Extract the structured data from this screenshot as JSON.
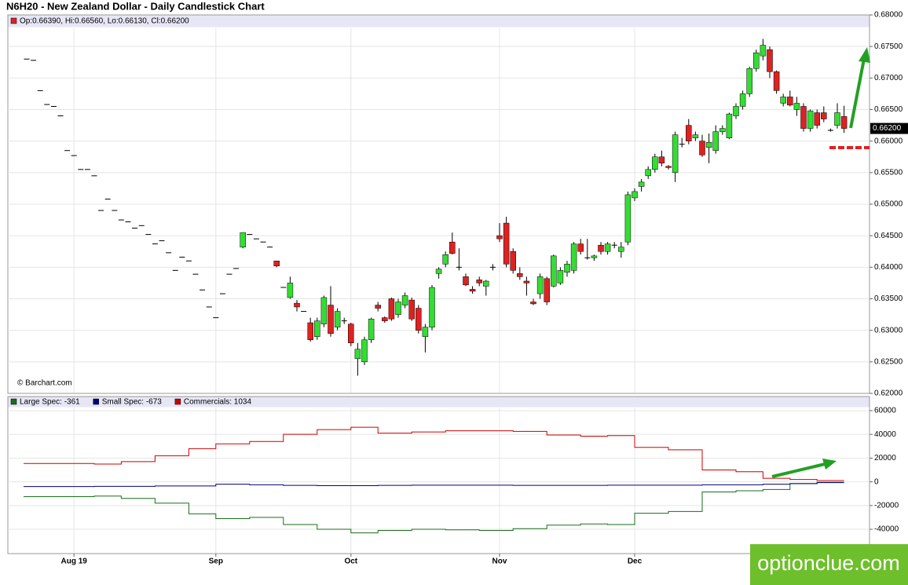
{
  "chart_data": [
    {
      "type": "candlestick",
      "title": "N6H20 - New Zealand Dollar - Daily Candlestick Chart",
      "ohlc_legend": "Op:0.66390, Hi:0.66560, Lo:0.66130, Cl:0.66200",
      "source": "© Barchart.com",
      "watermark": "optionclue.com",
      "up_color": "#33dd33",
      "down_color": "#dd2222",
      "last_price": {
        "value": 0.662,
        "label": "0.66200"
      },
      "ohlc": [
        [
          0.673,
          0.673,
          0.673,
          0.673
        ],
        [
          0.6728,
          0.6728,
          0.6728,
          0.6728
        ],
        [
          0.668,
          0.668,
          0.668,
          0.668
        ],
        [
          0.6658,
          0.6658,
          0.6658,
          0.6658
        ],
        [
          0.6655,
          0.6655,
          0.6655,
          0.6655
        ],
        [
          0.664,
          0.664,
          0.664,
          0.664
        ],
        [
          0.6585,
          0.6585,
          0.6585,
          0.6585
        ],
        [
          0.6577,
          0.6577,
          0.6577,
          0.6577
        ],
        [
          0.6555,
          0.6555,
          0.6555,
          0.6555
        ],
        [
          0.6555,
          0.6555,
          0.6555,
          0.6555
        ],
        [
          0.6545,
          0.6545,
          0.6545,
          0.6545
        ],
        [
          0.649,
          0.649,
          0.649,
          0.649
        ],
        [
          0.6508,
          0.6508,
          0.6508,
          0.6508
        ],
        [
          0.649,
          0.649,
          0.649,
          0.649
        ],
        [
          0.6475,
          0.6475,
          0.6475,
          0.6475
        ],
        [
          0.6472,
          0.6472,
          0.6472,
          0.6472
        ],
        [
          0.6462,
          0.6462,
          0.6462,
          0.6462
        ],
        [
          0.6466,
          0.6466,
          0.6466,
          0.6466
        ],
        [
          0.6452,
          0.6452,
          0.6452,
          0.6452
        ],
        [
          0.6437,
          0.6437,
          0.6437,
          0.6437
        ],
        [
          0.6442,
          0.6442,
          0.6442,
          0.6442
        ],
        [
          0.6423,
          0.6423,
          0.6423,
          0.6423
        ],
        [
          0.6395,
          0.6395,
          0.6395,
          0.6395
        ],
        [
          0.6416,
          0.6416,
          0.6416,
          0.6416
        ],
        [
          0.641,
          0.641,
          0.641,
          0.641
        ],
        [
          0.6389,
          0.6389,
          0.6389,
          0.6389
        ],
        [
          0.6364,
          0.6364,
          0.6364,
          0.6364
        ],
        [
          0.6337,
          0.6337,
          0.6337,
          0.6337
        ],
        [
          0.632,
          0.632,
          0.632,
          0.632
        ],
        [
          0.6358,
          0.6358,
          0.6358,
          0.6358
        ],
        [
          0.6389,
          0.6389,
          0.6389,
          0.6389
        ],
        [
          0.6398,
          0.6398,
          0.6398,
          0.6398
        ],
        [
          0.6432,
          0.6455,
          0.643,
          0.6455
        ],
        [
          0.6452,
          0.6452,
          0.6452,
          0.6452
        ],
        [
          0.6445,
          0.6445,
          0.6445,
          0.6445
        ],
        [
          0.644,
          0.644,
          0.644,
          0.644
        ],
        [
          0.6432,
          0.6432,
          0.6432,
          0.6432
        ],
        [
          0.641,
          0.641,
          0.64,
          0.6402
        ],
        [
          0.6368,
          0.6368,
          0.6368,
          0.6368
        ],
        [
          0.6352,
          0.6385,
          0.635,
          0.6375
        ],
        [
          0.6343,
          0.6348,
          0.633,
          0.6337
        ],
        [
          0.633,
          0.633,
          0.633,
          0.633
        ],
        [
          0.6312,
          0.632,
          0.6282,
          0.6285
        ],
        [
          0.629,
          0.632,
          0.6285,
          0.6315
        ],
        [
          0.631,
          0.6355,
          0.6305,
          0.6352
        ],
        [
          0.634,
          0.637,
          0.629,
          0.6295
        ],
        [
          0.6305,
          0.6335,
          0.63,
          0.633
        ],
        [
          0.6315,
          0.632,
          0.631,
          0.6315
        ],
        [
          0.631,
          0.6312,
          0.6275,
          0.628
        ],
        [
          0.6255,
          0.628,
          0.6228,
          0.627
        ],
        [
          0.625,
          0.629,
          0.6245,
          0.6285
        ],
        [
          0.6285,
          0.632,
          0.628,
          0.6318
        ],
        [
          0.634,
          0.6345,
          0.633,
          0.6335
        ],
        [
          0.632,
          0.6322,
          0.6312,
          0.6315
        ],
        [
          0.635,
          0.6352,
          0.6315,
          0.6318
        ],
        [
          0.6325,
          0.635,
          0.632,
          0.6345
        ],
        [
          0.634,
          0.636,
          0.6335,
          0.6355
        ],
        [
          0.6348,
          0.6352,
          0.6315,
          0.6318
        ],
        [
          0.6335,
          0.634,
          0.6295,
          0.63
        ],
        [
          0.629,
          0.631,
          0.6265,
          0.6305
        ],
        [
          0.6305,
          0.6372,
          0.63,
          0.6368
        ],
        [
          0.639,
          0.64,
          0.6382,
          0.6397
        ],
        [
          0.6405,
          0.6425,
          0.64,
          0.642
        ],
        [
          0.644,
          0.6455,
          0.642,
          0.6422
        ],
        [
          0.64,
          0.643,
          0.6395,
          0.64
        ],
        [
          0.6385,
          0.639,
          0.637,
          0.6372
        ],
        [
          0.6365,
          0.637,
          0.6358,
          0.6362
        ],
        [
          0.638,
          0.6385,
          0.637,
          0.6375
        ],
        [
          0.637,
          0.638,
          0.6355,
          0.6378
        ],
        [
          0.64,
          0.6405,
          0.6395,
          0.64
        ],
        [
          0.645,
          0.647,
          0.644,
          0.6445
        ],
        [
          0.647,
          0.648,
          0.64,
          0.6405
        ],
        [
          0.6425,
          0.643,
          0.639,
          0.6395
        ],
        [
          0.639,
          0.64,
          0.638,
          0.6385
        ],
        [
          0.6378,
          0.6385,
          0.6355,
          0.6375
        ],
        [
          0.6345,
          0.635,
          0.634,
          0.6342
        ],
        [
          0.6358,
          0.639,
          0.635,
          0.6385
        ],
        [
          0.6382,
          0.6385,
          0.634,
          0.6345
        ],
        [
          0.637,
          0.642,
          0.6368,
          0.6418
        ],
        [
          0.6375,
          0.64,
          0.6372,
          0.6395
        ],
        [
          0.6392,
          0.641,
          0.6385,
          0.6405
        ],
        [
          0.6395,
          0.644,
          0.639,
          0.6437
        ],
        [
          0.6437,
          0.6445,
          0.642,
          0.6425
        ],
        [
          0.6415,
          0.6445,
          0.6412,
          0.6415
        ],
        [
          0.6415,
          0.642,
          0.641,
          0.6418
        ],
        [
          0.6435,
          0.644,
          0.642,
          0.6425
        ],
        [
          0.6425,
          0.644,
          0.642,
          0.6437
        ],
        [
          0.6435,
          0.644,
          0.643,
          0.6435
        ],
        [
          0.6425,
          0.644,
          0.6415,
          0.6432
        ],
        [
          0.644,
          0.652,
          0.6435,
          0.6515
        ],
        [
          0.651,
          0.6525,
          0.6505,
          0.652
        ],
        [
          0.6528,
          0.654,
          0.652,
          0.6535
        ],
        [
          0.6545,
          0.656,
          0.654,
          0.6555
        ],
        [
          0.6555,
          0.658,
          0.655,
          0.6575
        ],
        [
          0.6575,
          0.6585,
          0.656,
          0.6565
        ],
        [
          0.656,
          0.6562,
          0.6555,
          0.6558
        ],
        [
          0.655,
          0.6615,
          0.6535,
          0.661
        ],
        [
          0.6595,
          0.6605,
          0.659,
          0.6595
        ],
        [
          0.6625,
          0.6635,
          0.6595,
          0.66
        ],
        [
          0.6605,
          0.6615,
          0.66,
          0.661
        ],
        [
          0.66,
          0.661,
          0.6575,
          0.6578
        ],
        [
          0.659,
          0.6612,
          0.6565,
          0.6598
        ],
        [
          0.6585,
          0.6625,
          0.658,
          0.6615
        ],
        [
          0.6615,
          0.6625,
          0.661,
          0.662
        ],
        [
          0.6605,
          0.6645,
          0.6603,
          0.6643
        ],
        [
          0.664,
          0.666,
          0.6635,
          0.6655
        ],
        [
          0.6655,
          0.668,
          0.665,
          0.6675
        ],
        [
          0.6675,
          0.6718,
          0.667,
          0.6715
        ],
        [
          0.6715,
          0.6745,
          0.671,
          0.674
        ],
        [
          0.6735,
          0.6762,
          0.6728,
          0.6752
        ],
        [
          0.6745,
          0.675,
          0.67,
          0.671
        ],
        [
          0.671,
          0.6712,
          0.6675,
          0.668
        ],
        [
          0.666,
          0.6675,
          0.6655,
          0.667
        ],
        [
          0.667,
          0.668,
          0.6655,
          0.6657
        ],
        [
          0.665,
          0.667,
          0.664,
          0.666
        ],
        [
          0.6655,
          0.666,
          0.6615,
          0.662
        ],
        [
          0.662,
          0.665,
          0.6615,
          0.6648
        ],
        [
          0.6645,
          0.665,
          0.662,
          0.6625
        ],
        [
          0.6645,
          0.6655,
          0.663,
          0.6635
        ],
        [
          0.6617,
          0.662,
          0.6615,
          0.6617
        ],
        [
          0.6625,
          0.666,
          0.662,
          0.6645
        ],
        [
          0.6639,
          0.6656,
          0.6613,
          0.662
        ]
      ],
      "xticks": [
        {
          "value": 7,
          "label": "Aug 19"
        },
        {
          "value": 28,
          "label": "Sep"
        },
        {
          "value": 48,
          "label": "Oct"
        },
        {
          "value": 70,
          "label": "Nov"
        },
        {
          "value": 90,
          "label": "Dec"
        }
      ],
      "ylim": [
        0.62,
        0.68
      ],
      "yticks": [
        {
          "value": 0.62,
          "label": "0.62000"
        },
        {
          "value": 0.625,
          "label": "0.62500"
        },
        {
          "value": 0.63,
          "label": "0.63000"
        },
        {
          "value": 0.635,
          "label": "0.63500"
        },
        {
          "value": 0.64,
          "label": "0.64000"
        },
        {
          "value": 0.645,
          "label": "0.64500"
        },
        {
          "value": 0.65,
          "label": "0.65000"
        },
        {
          "value": 0.655,
          "label": "0.65500"
        },
        {
          "value": 0.66,
          "label": "0.66000"
        },
        {
          "value": 0.665,
          "label": "0.66500"
        },
        {
          "value": 0.67,
          "label": "0.67000"
        },
        {
          "value": 0.675,
          "label": "0.67500"
        },
        {
          "value": 0.68,
          "label": "0.68000"
        }
      ],
      "grid": true
    },
    {
      "type": "step",
      "x": [
        0,
        10,
        14,
        19,
        24,
        28,
        33,
        38,
        43,
        48,
        52,
        57,
        62,
        67,
        72,
        77,
        82,
        86,
        90,
        95,
        100,
        105,
        109,
        113,
        117
      ],
      "series": [
        {
          "name": "Large Spec: -361",
          "color": "#1a6e1a",
          "values": [
            -12500,
            -12000,
            -14000,
            -18000,
            -27000,
            -31000,
            -30000,
            -36000,
            -40000,
            -43000,
            -41000,
            -40000,
            -40500,
            -41000,
            -39500,
            -36500,
            -35500,
            -36000,
            -26500,
            -25000,
            -8500,
            -7500,
            -6500,
            -1500,
            -361
          ]
        },
        {
          "name": "Small Spec: -673",
          "color": "#000080",
          "values": [
            -4000,
            -3800,
            -3800,
            -3500,
            -3500,
            -2000,
            -2500,
            -3000,
            -3200,
            -3200,
            -3000,
            -2800,
            -2800,
            -2800,
            -3000,
            -3000,
            -3000,
            -2800,
            -2800,
            -2800,
            -2500,
            -2500,
            -2000,
            -1500,
            -673
          ]
        },
        {
          "name": "Commercials: 1034",
          "color": "#cc0000",
          "values": [
            15500,
            15000,
            17000,
            22000,
            28000,
            32000,
            34000,
            40000,
            44000,
            46000,
            41000,
            42000,
            43000,
            43000,
            42500,
            39500,
            38500,
            39000,
            29000,
            27000,
            10000,
            8500,
            3000,
            2000,
            1034
          ]
        }
      ],
      "ylim": [
        -60500,
        71900
      ],
      "yticks": [
        -40000,
        -20000,
        0,
        20000,
        40000,
        60000
      ],
      "grid": true
    }
  ]
}
